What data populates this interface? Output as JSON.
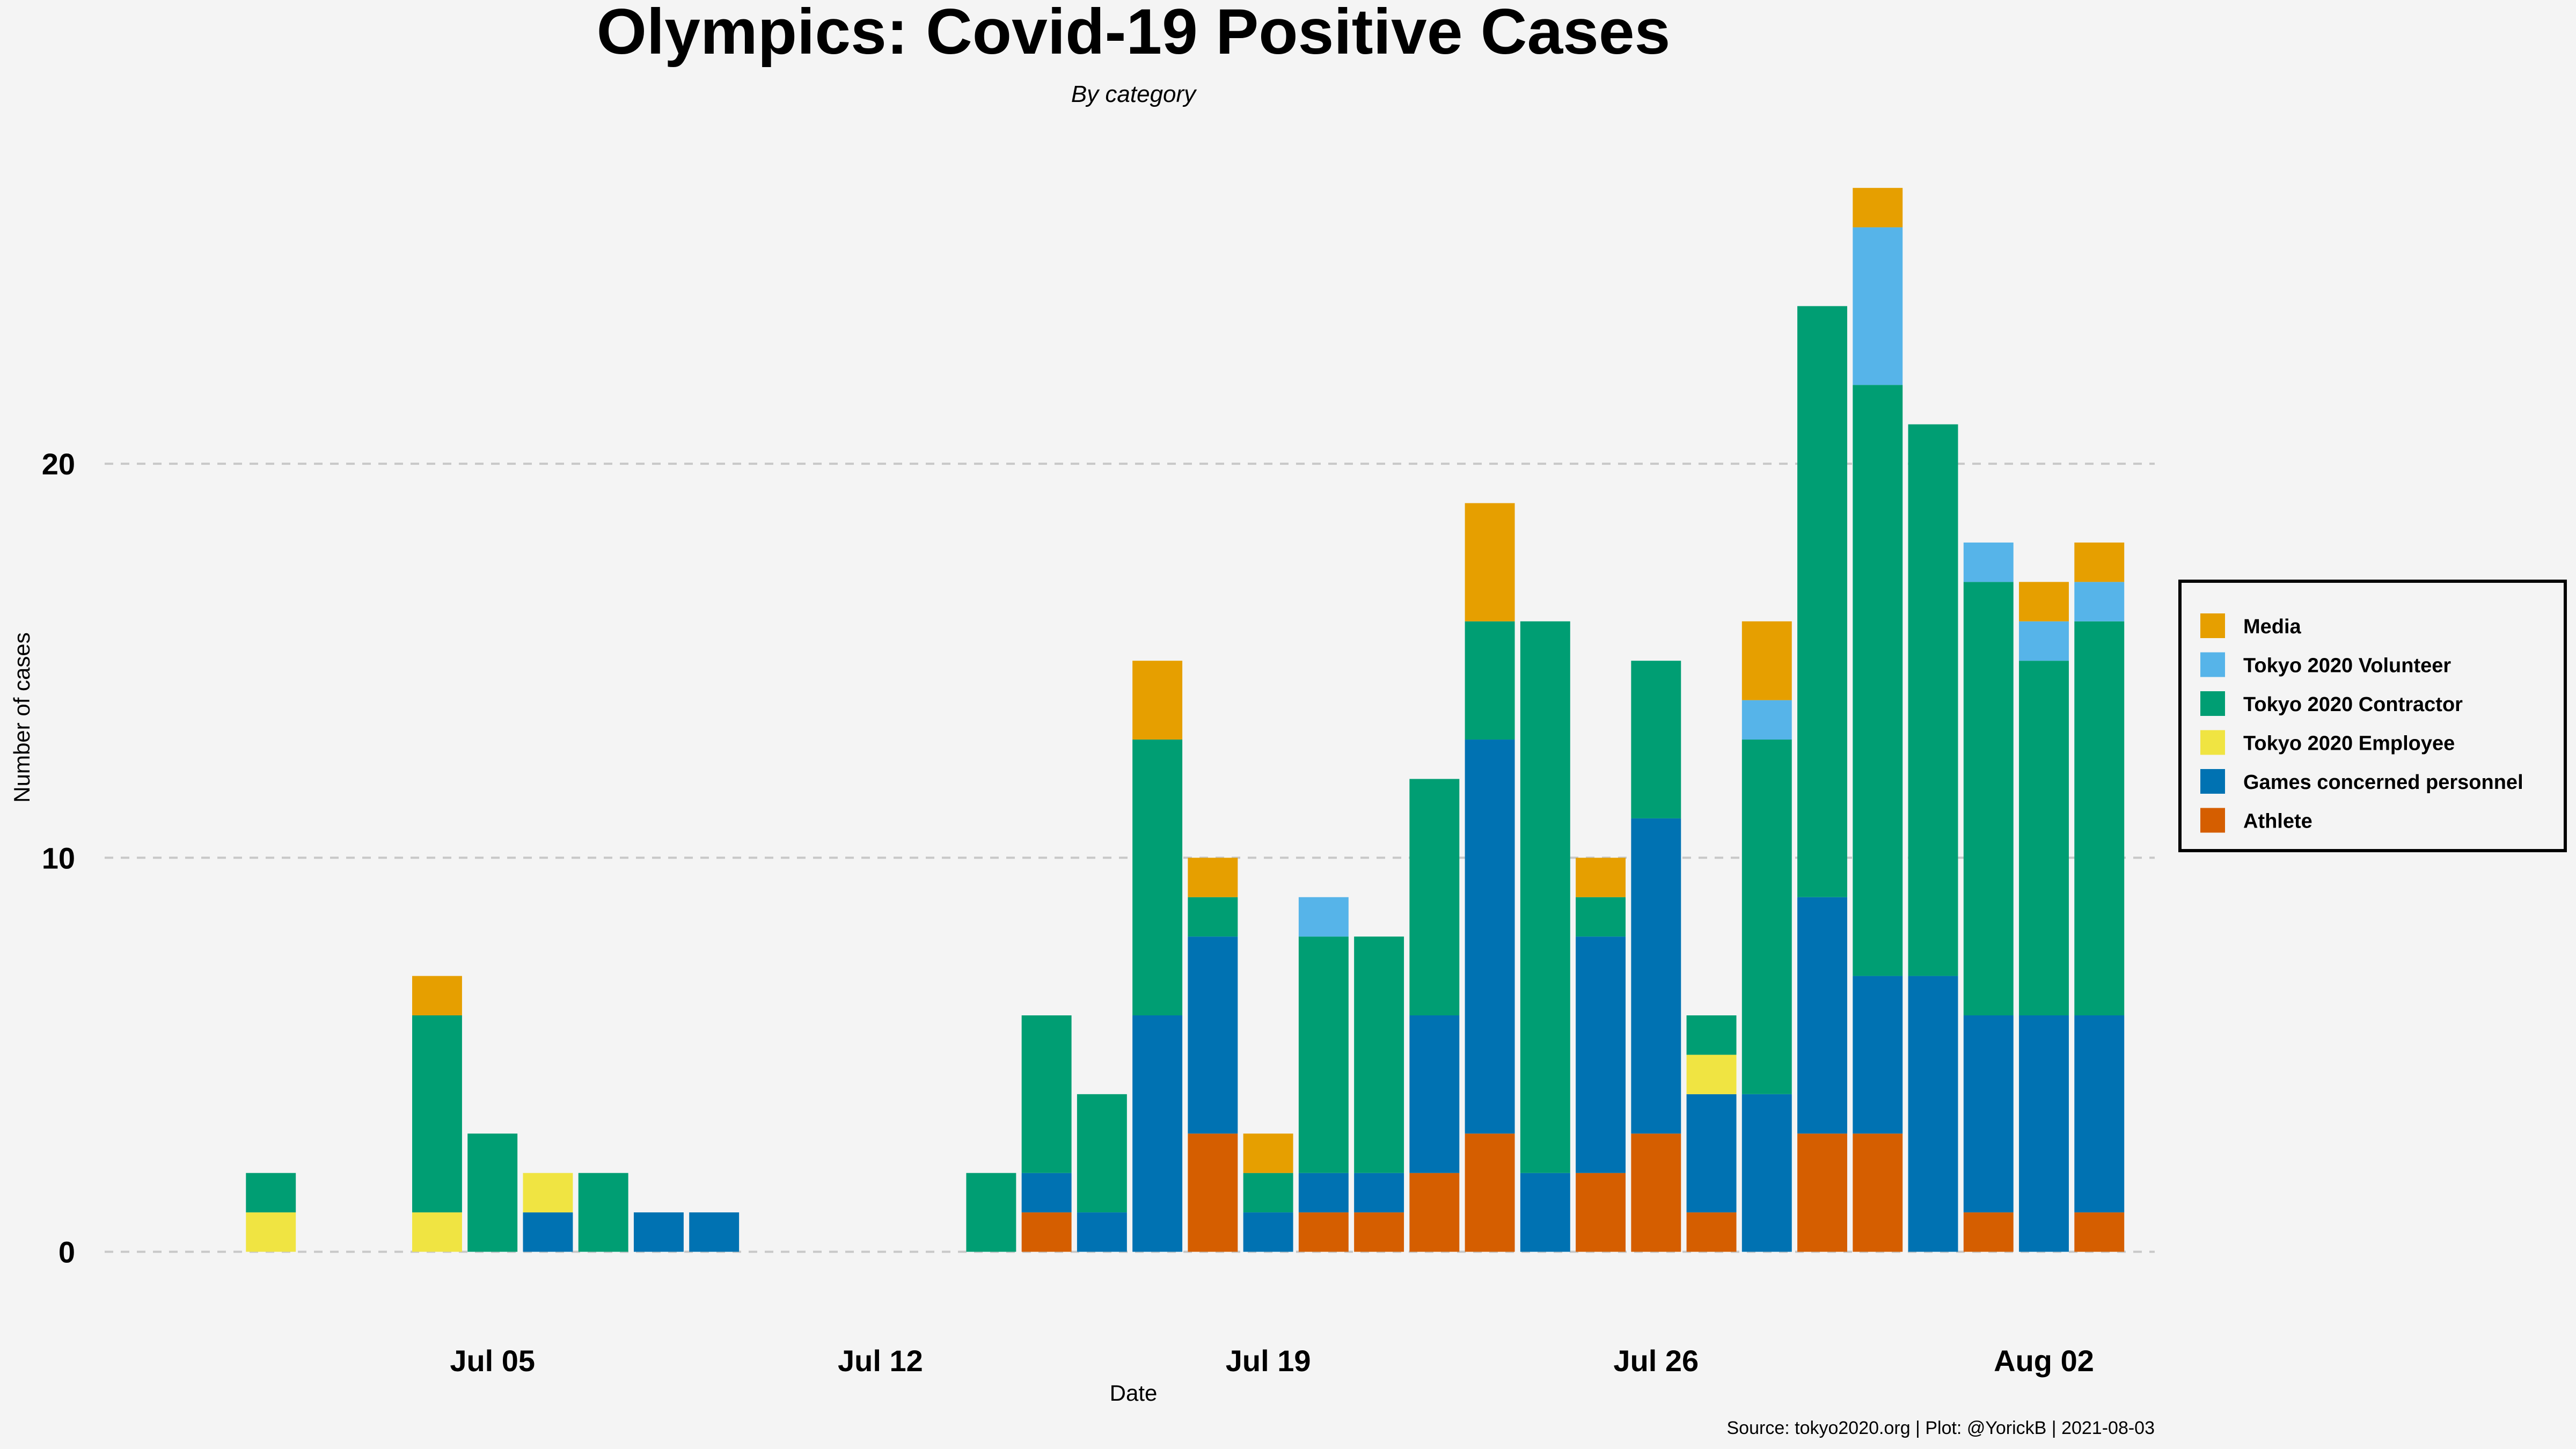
{
  "chart_data": {
    "type": "bar",
    "stacked": true,
    "title": "Olympics: Covid-19 Positive Cases",
    "subtitle": "By category",
    "xlabel": "Date",
    "ylabel": "Number of cases",
    "caption": "Source: tokyo2020.org | Plot: @YorickB |  2021-08-03",
    "y_ticks": [
      0,
      10,
      20
    ],
    "ylim": [
      -1.6,
      28.5
    ],
    "x_ticks": [
      {
        "date": "2021-07-05",
        "label": "Jul 05"
      },
      {
        "date": "2021-07-12",
        "label": "Jul 12"
      },
      {
        "date": "2021-07-19",
        "label": "Jul 19"
      },
      {
        "date": "2021-07-26",
        "label": "Jul 26"
      },
      {
        "date": "2021-08-02",
        "label": "Aug 02"
      }
    ],
    "xlim": [
      "2021-06-28",
      "2021-08-04"
    ],
    "grid": {
      "horizontal": "dashed",
      "vertical": false
    },
    "legend_position": "right",
    "stack_order_bottom_to_top": [
      "Athlete",
      "Games concerned personnel",
      "Tokyo 2020 Employee",
      "Tokyo 2020 Contractor",
      "Tokyo 2020 Volunteer",
      "Media"
    ],
    "legend_order": [
      "Media",
      "Tokyo 2020 Volunteer",
      "Tokyo 2020 Contractor",
      "Tokyo 2020 Employee",
      "Games concerned personnel",
      "Athlete"
    ],
    "series": [
      {
        "name": "Athlete",
        "color": "#D55E00"
      },
      {
        "name": "Games concerned personnel",
        "color": "#0072B2"
      },
      {
        "name": "Tokyo 2020 Employee",
        "color": "#F0E442"
      },
      {
        "name": "Tokyo 2020 Contractor",
        "color": "#009E73"
      },
      {
        "name": "Tokyo 2020 Volunteer",
        "color": "#56B4E9"
      },
      {
        "name": "Media",
        "color": "#E69F00"
      }
    ],
    "data": [
      {
        "date": "2021-07-01",
        "values": [
          0,
          0,
          1,
          1,
          0,
          0
        ]
      },
      {
        "date": "2021-07-04",
        "values": [
          0,
          0,
          1,
          5,
          0,
          1
        ]
      },
      {
        "date": "2021-07-05",
        "values": [
          0,
          0,
          0,
          3,
          0,
          0
        ]
      },
      {
        "date": "2021-07-06",
        "values": [
          0,
          1,
          1,
          0,
          0,
          0
        ]
      },
      {
        "date": "2021-07-07",
        "values": [
          0,
          0,
          0,
          2,
          0,
          0
        ]
      },
      {
        "date": "2021-07-08",
        "values": [
          0,
          1,
          0,
          0,
          0,
          0
        ]
      },
      {
        "date": "2021-07-09",
        "values": [
          0,
          1,
          0,
          0,
          0,
          0
        ]
      },
      {
        "date": "2021-07-14",
        "values": [
          0,
          0,
          0,
          2,
          0,
          0
        ]
      },
      {
        "date": "2021-07-15",
        "values": [
          1,
          1,
          0,
          4,
          0,
          0
        ]
      },
      {
        "date": "2021-07-16",
        "values": [
          0,
          1,
          0,
          3,
          0,
          0
        ]
      },
      {
        "date": "2021-07-17",
        "values": [
          0,
          6,
          0,
          7,
          0,
          2
        ]
      },
      {
        "date": "2021-07-18",
        "values": [
          3,
          5,
          0,
          1,
          0,
          1
        ]
      },
      {
        "date": "2021-07-19",
        "values": [
          0,
          1,
          0,
          1,
          0,
          1
        ]
      },
      {
        "date": "2021-07-20",
        "values": [
          1,
          1,
          0,
          6,
          1,
          0
        ]
      },
      {
        "date": "2021-07-21",
        "values": [
          1,
          1,
          0,
          6,
          0,
          0
        ]
      },
      {
        "date": "2021-07-22",
        "values": [
          2,
          4,
          0,
          6,
          0,
          0
        ]
      },
      {
        "date": "2021-07-23",
        "values": [
          3,
          10,
          0,
          3,
          0,
          3
        ]
      },
      {
        "date": "2021-07-24",
        "values": [
          0,
          2,
          0,
          14,
          0,
          0
        ]
      },
      {
        "date": "2021-07-25",
        "values": [
          2,
          6,
          0,
          1,
          0,
          1
        ]
      },
      {
        "date": "2021-07-26",
        "values": [
          3,
          8,
          0,
          4,
          0,
          0
        ]
      },
      {
        "date": "2021-07-27",
        "values": [
          1,
          3,
          1,
          1,
          0,
          0
        ]
      },
      {
        "date": "2021-07-28",
        "values": [
          0,
          4,
          0,
          9,
          1,
          2
        ]
      },
      {
        "date": "2021-07-29",
        "values": [
          3,
          6,
          0,
          15,
          0,
          0
        ]
      },
      {
        "date": "2021-07-30",
        "values": [
          3,
          4,
          0,
          15,
          4,
          1
        ]
      },
      {
        "date": "2021-07-31",
        "values": [
          0,
          7,
          0,
          14,
          0,
          0
        ]
      },
      {
        "date": "2021-08-01",
        "values": [
          1,
          5,
          0,
          11,
          1,
          0
        ]
      },
      {
        "date": "2021-08-02",
        "values": [
          0,
          6,
          0,
          9,
          1,
          1
        ]
      },
      {
        "date": "2021-08-03",
        "values": [
          1,
          5,
          0,
          10,
          1,
          1
        ]
      }
    ]
  }
}
